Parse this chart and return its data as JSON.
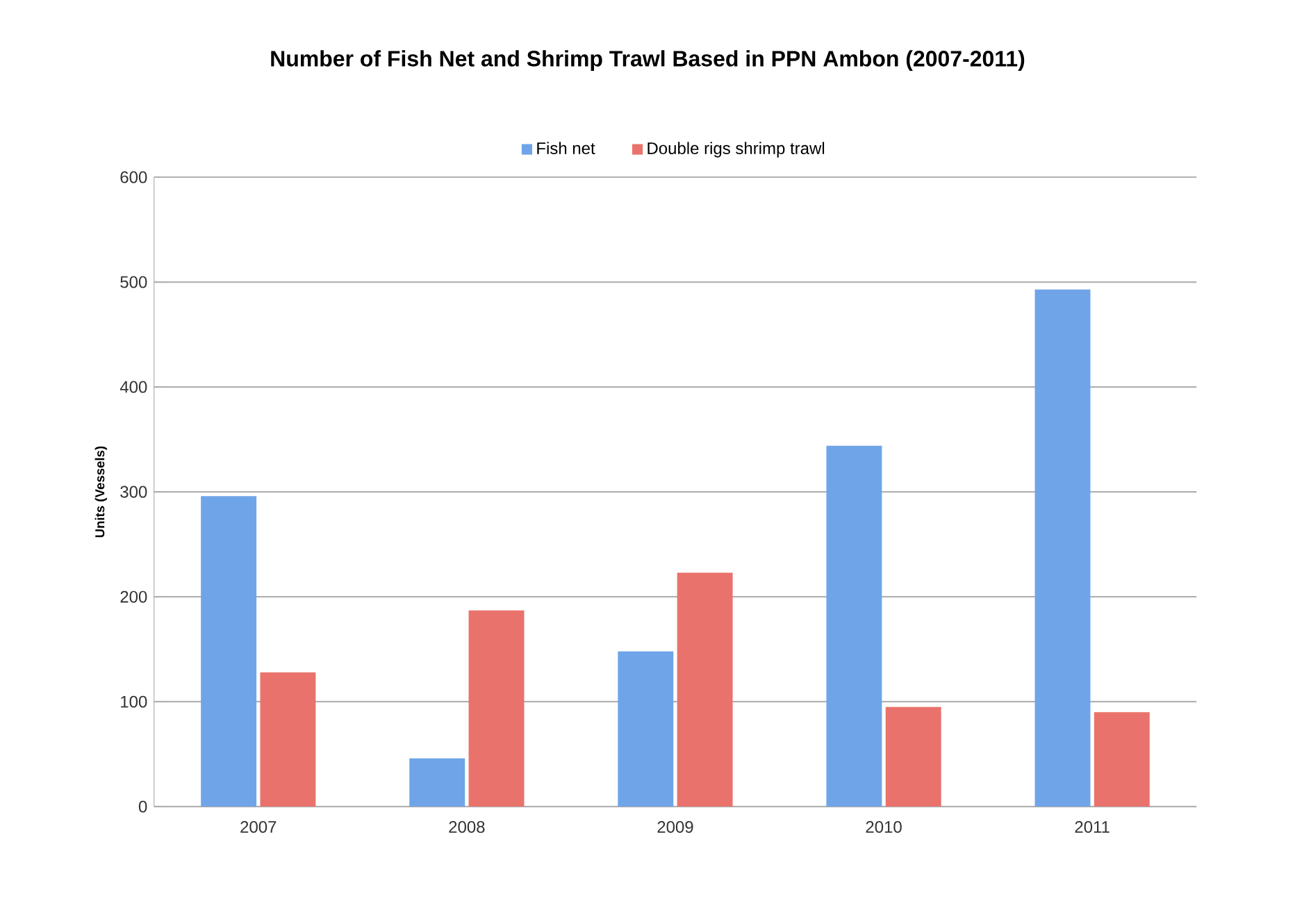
{
  "chart_data": {
    "type": "bar",
    "title": "Number of Fish Net and Shrimp Trawl Based in PPN Ambon (2007-2011)",
    "ylabel": "Units (Vessels)",
    "categories": [
      "2007",
      "2008",
      "2009",
      "2010",
      "2011"
    ],
    "series": [
      {
        "name": "Fish net",
        "color": "#6fa5e8",
        "values": [
          296,
          46,
          148,
          344,
          493
        ]
      },
      {
        "name": "Double rigs shrimp trawl",
        "color": "#e9736c",
        "values": [
          128,
          187,
          223,
          95,
          90
        ]
      }
    ],
    "ylim": [
      0,
      600
    ],
    "yticks": [
      0,
      100,
      200,
      300,
      400,
      500,
      600
    ],
    "grid": "y",
    "legend": "top"
  }
}
